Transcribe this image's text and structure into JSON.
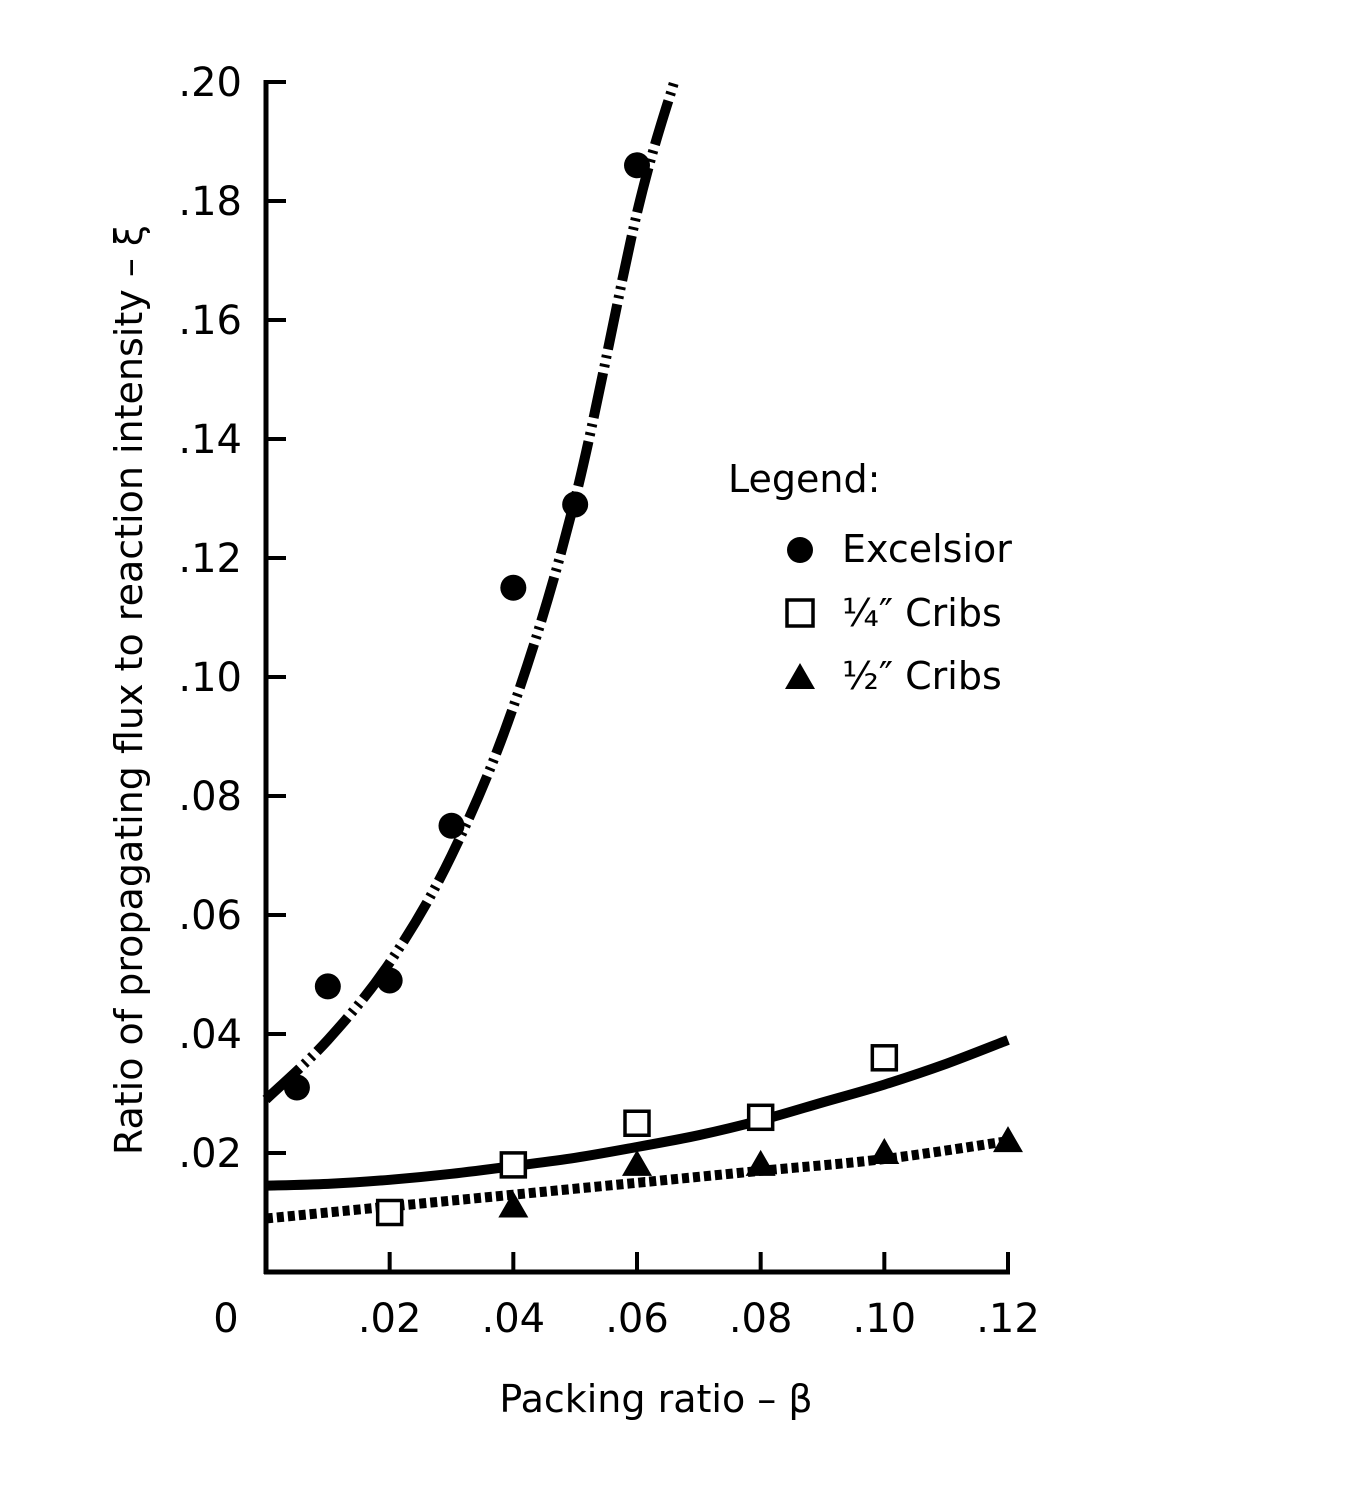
{
  "chart_data": {
    "type": "scatter",
    "title": "",
    "xlabel": "Packing ratio – β",
    "ylabel": "Ratio of propagating flux to reaction intensity – ξ",
    "xlim": [
      0,
      0.12
    ],
    "ylim": [
      0,
      0.2
    ],
    "x_ticks": [
      0,
      0.02,
      0.04,
      0.06,
      0.08,
      0.1,
      0.12
    ],
    "x_tick_labels": [
      "0",
      ".02",
      ".04",
      ".06",
      ".08",
      ".10",
      ".12"
    ],
    "y_ticks": [
      0.02,
      0.04,
      0.06,
      0.08,
      0.1,
      0.12,
      0.14,
      0.16,
      0.18,
      0.2
    ],
    "y_tick_labels": [
      ".02",
      ".04",
      ".06",
      ".08",
      ".10",
      ".12",
      ".14",
      ".16",
      ".18",
      ".20"
    ],
    "grid": false,
    "legend": {
      "title": "Legend:",
      "position": "right",
      "entries": [
        "Excelsior",
        "¼″ Cribs",
        "½″ Cribs"
      ]
    },
    "series": [
      {
        "name": "Excelsior",
        "marker": "filled-circle",
        "points": [
          [
            0.005,
            0.031
          ],
          [
            0.01,
            0.048
          ],
          [
            0.02,
            0.049
          ],
          [
            0.03,
            0.075
          ],
          [
            0.04,
            0.115
          ],
          [
            0.05,
            0.129
          ],
          [
            0.06,
            0.186
          ]
        ],
        "fit_line": "dash-dot",
        "fit_points": [
          [
            0.0,
            0.029
          ],
          [
            0.01,
            0.039
          ],
          [
            0.02,
            0.052
          ],
          [
            0.03,
            0.07
          ],
          [
            0.04,
            0.095
          ],
          [
            0.05,
            0.13
          ],
          [
            0.06,
            0.178
          ],
          [
            0.066,
            0.2
          ]
        ]
      },
      {
        "name": "¼″ Cribs",
        "marker": "open-square",
        "points": [
          [
            0.02,
            0.01
          ],
          [
            0.04,
            0.018
          ],
          [
            0.06,
            0.025
          ],
          [
            0.08,
            0.026
          ],
          [
            0.1,
            0.036
          ]
        ],
        "fit_line": "solid",
        "fit_points": [
          [
            0.0,
            0.0145
          ],
          [
            0.01,
            0.0148
          ],
          [
            0.02,
            0.0155
          ],
          [
            0.03,
            0.0165
          ],
          [
            0.04,
            0.0178
          ],
          [
            0.05,
            0.0192
          ],
          [
            0.06,
            0.021
          ],
          [
            0.07,
            0.023
          ],
          [
            0.08,
            0.0255
          ],
          [
            0.09,
            0.0285
          ],
          [
            0.1,
            0.0315
          ],
          [
            0.11,
            0.035
          ],
          [
            0.12,
            0.039
          ]
        ]
      },
      {
        "name": "½″ Cribs",
        "marker": "filled-triangle",
        "points": [
          [
            0.04,
            0.011
          ],
          [
            0.06,
            0.018
          ],
          [
            0.08,
            0.018
          ],
          [
            0.1,
            0.02
          ],
          [
            0.12,
            0.022
          ]
        ],
        "fit_line": "dotted",
        "fit_points": [
          [
            0.0,
            0.009
          ],
          [
            0.02,
            0.011
          ],
          [
            0.04,
            0.013
          ],
          [
            0.06,
            0.015
          ],
          [
            0.08,
            0.017
          ],
          [
            0.1,
            0.019
          ],
          [
            0.12,
            0.022
          ]
        ]
      }
    ]
  }
}
